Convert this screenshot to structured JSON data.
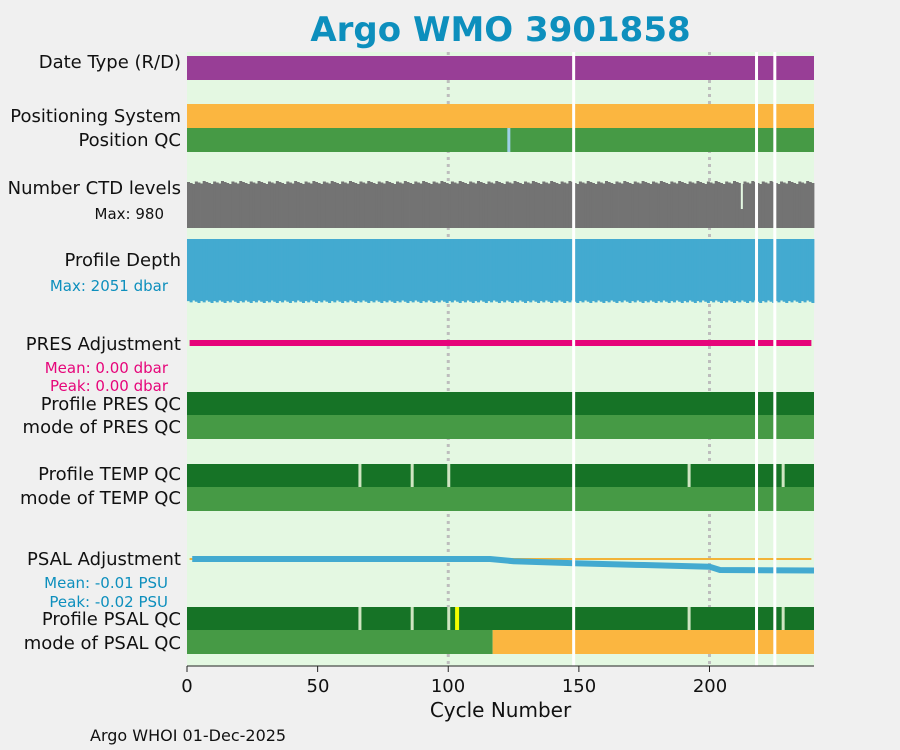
{
  "title": "Argo WMO 3901858",
  "footer": "Argo WHOI 01-Dec-2025",
  "colors": {
    "title": "#0d8fbd",
    "background": "#e4f8e2",
    "datatype_d": "#983e96",
    "positioning": "#fbb640",
    "qc_good": "#469a45",
    "qc_dark": "#167326",
    "ctd": "#737373",
    "depth": "#43aad0",
    "pres_adj": "#e6057a",
    "psal_adj": "#43aad0",
    "psal_ref": "#f2b338",
    "orange": "#fbb640",
    "yellow": "#f6ff00",
    "light_blue": "#9fd0e8",
    "gap": "#ffffff",
    "grid": "#bdbdbd"
  },
  "rows": {
    "datatype": "Date Type (R/D)",
    "positioning": "Positioning System",
    "position_qc": "Position QC",
    "ctd_levels": "Number CTD levels",
    "profile_depth": "Profile Depth",
    "pres_adj": "PRES Adjustment",
    "pres_qc": "Profile PRES QC",
    "pres_mode": "mode of PRES QC",
    "temp_qc": "Profile TEMP QC",
    "temp_mode": "mode of TEMP QC",
    "psal_adj": "PSAL Adjustment",
    "psal_qc": "Profile PSAL QC",
    "psal_mode": "mode of PSAL QC"
  },
  "notes": {
    "ctd_max": "Max: 980",
    "depth_max": "Max: 2051 dbar",
    "pres_mean": "Mean: 0.00 dbar",
    "pres_peak": "Peak: 0.00 dbar",
    "psal_mean": "Mean: -0.01 PSU",
    "psal_peak": "Peak: -0.02 PSU"
  },
  "chart_data": {
    "type": "bar",
    "xlabel": "Cycle Number",
    "xlim": [
      0,
      240
    ],
    "xticks": [
      0,
      50,
      100,
      150,
      200
    ],
    "xtick_labels": [
      "0",
      "50",
      "100",
      "150",
      "200"
    ],
    "grid_x": [
      100,
      200
    ],
    "cycles_max": 240,
    "missing_cycles": [
      148,
      218,
      225
    ],
    "ctd_max_levels": 980,
    "depth_max_dbar": 2051,
    "position_qc_flag_cycles": [
      {
        "cycle": 123,
        "flag": "light_blue"
      }
    ],
    "temp_qc_mark_cycles": [
      66,
      86,
      100,
      192,
      228
    ],
    "psal_qc_mark_cycles": [
      66,
      86,
      100,
      192,
      228
    ],
    "psal_qc_flag_cycles": [
      {
        "cycle": 103,
        "flag": "yellow"
      }
    ],
    "psal_mode_segments": [
      {
        "from": 0,
        "to": 117,
        "flag": "qc_good"
      },
      {
        "from": 117,
        "to": 240,
        "flag": "orange"
      }
    ],
    "pres_adjustment_dbar": {
      "mean": 0.0,
      "peak": 0.0
    },
    "psal_adjustment_psu": {
      "mean": -0.01,
      "peak": -0.02,
      "points": [
        [
          2,
          0.0
        ],
        [
          116,
          0.0
        ],
        [
          125,
          -0.004
        ],
        [
          150,
          -0.008
        ],
        [
          175,
          -0.011
        ],
        [
          200,
          -0.014
        ],
        [
          204,
          -0.02
        ],
        [
          240,
          -0.021
        ]
      ]
    }
  }
}
